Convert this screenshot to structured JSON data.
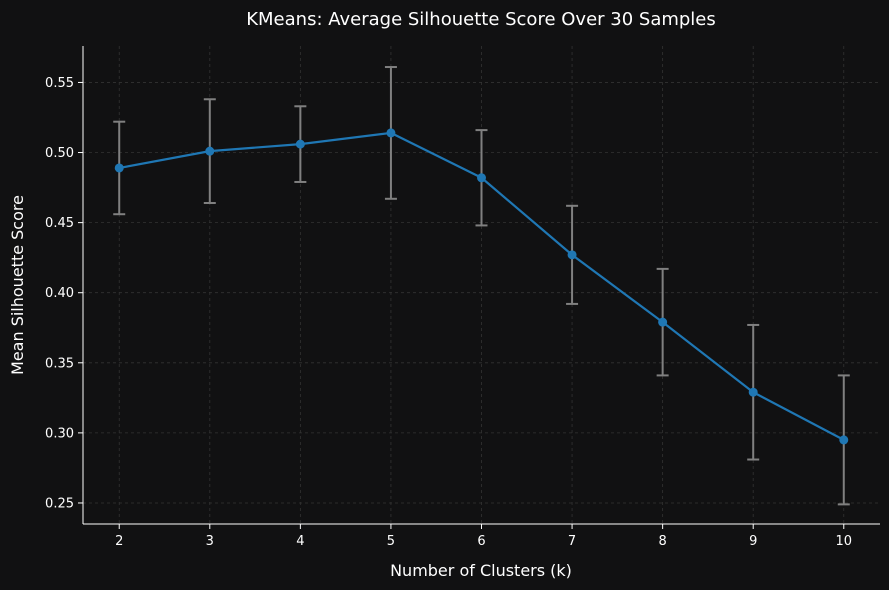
{
  "chart_data": {
    "type": "line",
    "title": "KMeans: Average Silhouette Score Over 30 Samples",
    "xlabel": "Number of Clusters (k)",
    "ylabel": "Mean Silhouette Score",
    "x": [
      2,
      3,
      4,
      5,
      6,
      7,
      8,
      9,
      10
    ],
    "series": [
      {
        "values": [
          0.489,
          0.501,
          0.506,
          0.514,
          0.482,
          0.427,
          0.379,
          0.329,
          0.295
        ],
        "error": [
          0.033,
          0.037,
          0.027,
          0.047,
          0.034,
          0.035,
          0.038,
          0.048,
          0.046
        ]
      }
    ],
    "xlim": [
      1.6,
      10.4
    ],
    "ylim": [
      0.235,
      0.576
    ],
    "xticks": [
      "2",
      "3",
      "4",
      "5",
      "6",
      "7",
      "8",
      "9",
      "10"
    ],
    "yticks": [
      "0.25",
      "0.30",
      "0.35",
      "0.40",
      "0.45",
      "0.50",
      "0.55"
    ],
    "grid": true,
    "colors": {
      "background": "#111112",
      "line": "#1f77b4",
      "errorbar": "#808080",
      "grid": "#333333",
      "axis": "#ffffff",
      "text": "#ffffff"
    }
  }
}
